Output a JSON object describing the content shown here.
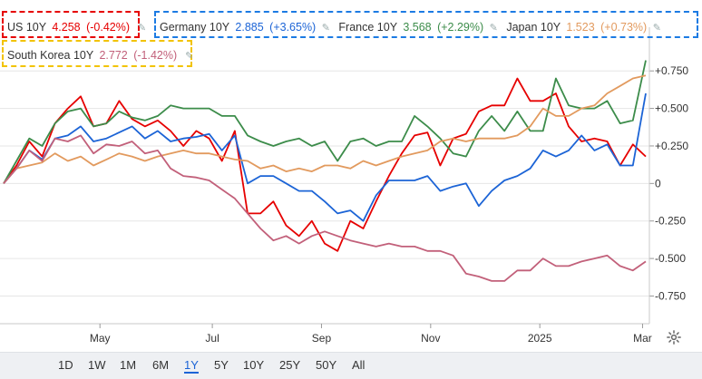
{
  "legend": {
    "us": {
      "name": "US 10Y",
      "value": "4.258",
      "change": "(-0.42%)",
      "color": "#e60000"
    },
    "germany": {
      "name": "Germany 10Y",
      "value": "2.885",
      "change": "(+3.65%)",
      "color": "#1c64d6"
    },
    "france": {
      "name": "France 10Y",
      "value": "3.568",
      "change": "(+2.29%)",
      "color": "#3c8c4a"
    },
    "japan": {
      "name": "Japan 10Y",
      "value": "1.523",
      "change": "(+0.73%)",
      "color": "#e29a5e"
    },
    "south_korea": {
      "name": "South Korea 10Y",
      "value": "2.772",
      "change": "(-1.42%)",
      "color": "#c2607a"
    }
  },
  "range_buttons": [
    {
      "label": "1D",
      "active": false
    },
    {
      "label": "1W",
      "active": false
    },
    {
      "label": "1M",
      "active": false
    },
    {
      "label": "6M",
      "active": false
    },
    {
      "label": "1Y",
      "active": true
    },
    {
      "label": "5Y",
      "active": false
    },
    {
      "label": "10Y",
      "active": false
    },
    {
      "label": "25Y",
      "active": false
    },
    {
      "label": "50Y",
      "active": false
    },
    {
      "label": "All",
      "active": false
    }
  ],
  "settings_icon": "gear-icon",
  "edit_icon": "pencil-icon",
  "chart_data": {
    "type": "line",
    "x_tick_labels": [
      "May",
      "Jul",
      "Sep",
      "Nov",
      "2025",
      "Mar"
    ],
    "y_tick_labels": [
      "+0.750",
      "+0.500",
      "+0.250",
      "0",
      "-0.250",
      "-0.500",
      "-0.750"
    ],
    "y_ticks": [
      0.75,
      0.5,
      0.25,
      0,
      -0.25,
      -0.5,
      -0.75
    ],
    "ylim": [
      -0.88,
      0.86
    ],
    "xlim": [
      0,
      100
    ],
    "x_tick_positions": [
      15,
      32.5,
      49.5,
      66.5,
      83.5,
      99.5
    ],
    "grid": "horizontal",
    "series": [
      {
        "name": "US 10Y",
        "key": "us",
        "color": "#e60000",
        "x": [
          0,
          2,
          4,
          6,
          8,
          10,
          12,
          14,
          16,
          18,
          20,
          22,
          24,
          26,
          28,
          30,
          32,
          34,
          36,
          38,
          40,
          42,
          44,
          46,
          48,
          50,
          52,
          54,
          56,
          58,
          60,
          62,
          64,
          66,
          68,
          70,
          72,
          74,
          76,
          78,
          80,
          82,
          84,
          86,
          88,
          90,
          92,
          94,
          96,
          98,
          100
        ],
        "values": [
          0.0,
          0.12,
          0.28,
          0.18,
          0.4,
          0.5,
          0.58,
          0.38,
          0.4,
          0.55,
          0.43,
          0.38,
          0.42,
          0.35,
          0.25,
          0.35,
          0.3,
          0.15,
          0.35,
          -0.2,
          -0.2,
          -0.12,
          -0.28,
          -0.35,
          -0.25,
          -0.4,
          -0.45,
          -0.25,
          -0.3,
          -0.12,
          0.05,
          0.2,
          0.32,
          0.34,
          0.12,
          0.3,
          0.33,
          0.48,
          0.52,
          0.52,
          0.7,
          0.55,
          0.55,
          0.6,
          0.38,
          0.28,
          0.3,
          0.28,
          0.12,
          0.26,
          0.18
        ]
      },
      {
        "name": "Germany 10Y",
        "key": "germany",
        "color": "#1c64d6",
        "x": [
          0,
          2,
          4,
          6,
          8,
          10,
          12,
          14,
          16,
          18,
          20,
          22,
          24,
          26,
          28,
          30,
          32,
          34,
          36,
          38,
          40,
          42,
          44,
          46,
          48,
          50,
          52,
          54,
          56,
          58,
          60,
          62,
          64,
          66,
          68,
          70,
          72,
          74,
          76,
          78,
          80,
          82,
          84,
          86,
          88,
          90,
          92,
          94,
          96,
          98,
          100
        ],
        "values": [
          0.0,
          0.1,
          0.22,
          0.16,
          0.3,
          0.32,
          0.38,
          0.28,
          0.3,
          0.34,
          0.38,
          0.3,
          0.35,
          0.28,
          0.3,
          0.31,
          0.33,
          0.22,
          0.32,
          0.0,
          0.05,
          0.05,
          0.0,
          -0.05,
          -0.05,
          -0.12,
          -0.2,
          -0.18,
          -0.25,
          -0.08,
          0.02,
          0.02,
          0.02,
          0.05,
          -0.05,
          -0.02,
          0.0,
          -0.15,
          -0.05,
          0.02,
          0.05,
          0.1,
          0.22,
          0.18,
          0.22,
          0.32,
          0.22,
          0.26,
          0.12,
          0.12,
          0.6
        ]
      },
      {
        "name": "France 10Y",
        "key": "france",
        "color": "#3c8c4a",
        "x": [
          0,
          2,
          4,
          6,
          8,
          10,
          12,
          14,
          16,
          18,
          20,
          22,
          24,
          26,
          28,
          30,
          32,
          34,
          36,
          38,
          40,
          42,
          44,
          46,
          48,
          50,
          52,
          54,
          56,
          58,
          60,
          62,
          64,
          66,
          68,
          70,
          72,
          74,
          76,
          78,
          80,
          82,
          84,
          86,
          88,
          90,
          92,
          94,
          96,
          98,
          100
        ],
        "values": [
          0.0,
          0.15,
          0.3,
          0.25,
          0.4,
          0.48,
          0.5,
          0.38,
          0.4,
          0.48,
          0.44,
          0.42,
          0.45,
          0.52,
          0.5,
          0.5,
          0.5,
          0.45,
          0.45,
          0.32,
          0.28,
          0.25,
          0.28,
          0.3,
          0.25,
          0.28,
          0.15,
          0.28,
          0.3,
          0.25,
          0.28,
          0.28,
          0.45,
          0.38,
          0.3,
          0.2,
          0.18,
          0.35,
          0.45,
          0.35,
          0.48,
          0.35,
          0.35,
          0.7,
          0.52,
          0.5,
          0.5,
          0.55,
          0.4,
          0.42,
          0.82
        ]
      },
      {
        "name": "Japan 10Y",
        "key": "japan",
        "color": "#e29a5e",
        "x": [
          0,
          2,
          4,
          6,
          8,
          10,
          12,
          14,
          16,
          18,
          20,
          22,
          24,
          26,
          28,
          30,
          32,
          34,
          36,
          38,
          40,
          42,
          44,
          46,
          48,
          50,
          52,
          54,
          56,
          58,
          60,
          62,
          64,
          66,
          68,
          70,
          72,
          74,
          76,
          78,
          80,
          82,
          84,
          86,
          88,
          90,
          92,
          94,
          96,
          98,
          100
        ],
        "values": [
          0.0,
          0.1,
          0.12,
          0.14,
          0.2,
          0.15,
          0.18,
          0.12,
          0.16,
          0.2,
          0.18,
          0.15,
          0.18,
          0.2,
          0.22,
          0.2,
          0.2,
          0.18,
          0.16,
          0.15,
          0.1,
          0.12,
          0.08,
          0.1,
          0.08,
          0.12,
          0.12,
          0.1,
          0.15,
          0.12,
          0.15,
          0.18,
          0.2,
          0.22,
          0.28,
          0.3,
          0.28,
          0.3,
          0.3,
          0.3,
          0.32,
          0.38,
          0.5,
          0.45,
          0.45,
          0.5,
          0.52,
          0.6,
          0.65,
          0.7,
          0.72
        ]
      },
      {
        "name": "South Korea 10Y",
        "key": "south_korea",
        "color": "#c2607a",
        "x": [
          0,
          2,
          4,
          6,
          8,
          10,
          12,
          14,
          16,
          18,
          20,
          22,
          24,
          26,
          28,
          30,
          32,
          34,
          36,
          38,
          40,
          42,
          44,
          46,
          48,
          50,
          52,
          54,
          56,
          58,
          60,
          62,
          64,
          66,
          68,
          70,
          72,
          74,
          76,
          78,
          80,
          82,
          84,
          86,
          88,
          90,
          92,
          94,
          96,
          98,
          100
        ],
        "values": [
          0.0,
          0.1,
          0.22,
          0.15,
          0.3,
          0.28,
          0.32,
          0.2,
          0.26,
          0.25,
          0.28,
          0.2,
          0.22,
          0.1,
          0.05,
          0.04,
          0.02,
          -0.04,
          -0.1,
          -0.2,
          -0.3,
          -0.38,
          -0.35,
          -0.4,
          -0.35,
          -0.32,
          -0.35,
          -0.38,
          -0.4,
          -0.42,
          -0.4,
          -0.42,
          -0.42,
          -0.45,
          -0.45,
          -0.48,
          -0.6,
          -0.62,
          -0.65,
          -0.65,
          -0.58,
          -0.58,
          -0.5,
          -0.55,
          -0.55,
          -0.52,
          -0.5,
          -0.48,
          -0.55,
          -0.58,
          -0.52
        ]
      }
    ]
  }
}
